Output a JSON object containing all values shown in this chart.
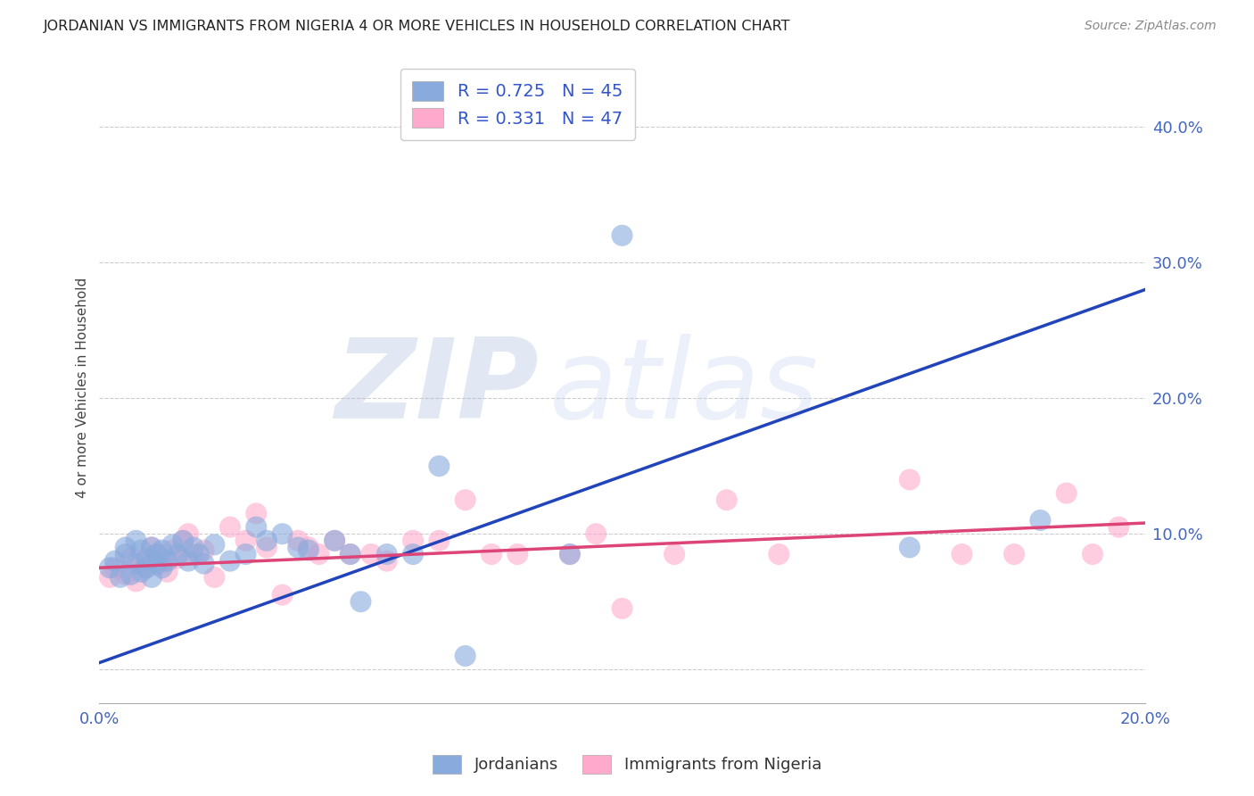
{
  "title": "JORDANIAN VS IMMIGRANTS FROM NIGERIA 4 OR MORE VEHICLES IN HOUSEHOLD CORRELATION CHART",
  "source": "Source: ZipAtlas.com",
  "ylabel_label": "4 or more Vehicles in Household",
  "x_min": 0.0,
  "x_max": 0.2,
  "y_min": -0.025,
  "y_max": 0.44,
  "x_ticks": [
    0.0,
    0.04,
    0.08,
    0.12,
    0.16,
    0.2
  ],
  "x_tick_labels": [
    "0.0%",
    "",
    "",
    "",
    "",
    "20.0%"
  ],
  "y_ticks": [
    0.0,
    0.1,
    0.2,
    0.3,
    0.4
  ],
  "y_tick_labels": [
    "",
    "10.0%",
    "20.0%",
    "30.0%",
    "40.0%"
  ],
  "blue_color": "#88AADD",
  "blue_line_color": "#2244BB",
  "pink_color": "#FFAACC",
  "pink_line_color": "#DD4477",
  "legend_blue_label": "R = 0.725   N = 45",
  "legend_pink_label": "R = 0.331   N = 47",
  "legend_label_jordanians": "Jordanians",
  "legend_label_nigeria": "Immigrants from Nigeria",
  "watermark_zip": "ZIP",
  "watermark_atlas": "atlas",
  "blue_R": 0.725,
  "blue_N": 45,
  "pink_R": 0.331,
  "pink_N": 47,
  "blue_line_x0": 0.0,
  "blue_line_y0": 0.005,
  "blue_line_x1": 0.2,
  "blue_line_y1": 0.28,
  "pink_line_x0": 0.0,
  "pink_line_y0": 0.075,
  "pink_line_x1": 0.2,
  "pink_line_y1": 0.108,
  "blue_scatter_x": [
    0.002,
    0.003,
    0.004,
    0.005,
    0.005,
    0.006,
    0.007,
    0.007,
    0.008,
    0.008,
    0.009,
    0.009,
    0.01,
    0.01,
    0.011,
    0.011,
    0.012,
    0.012,
    0.013,
    0.014,
    0.015,
    0.016,
    0.017,
    0.018,
    0.019,
    0.02,
    0.022,
    0.025,
    0.028,
    0.03,
    0.032,
    0.035,
    0.038,
    0.04,
    0.045,
    0.048,
    0.05,
    0.055,
    0.06,
    0.065,
    0.07,
    0.09,
    0.1,
    0.155,
    0.18
  ],
  "blue_scatter_y": [
    0.075,
    0.08,
    0.068,
    0.085,
    0.09,
    0.07,
    0.078,
    0.095,
    0.072,
    0.088,
    0.075,
    0.082,
    0.068,
    0.09,
    0.078,
    0.085,
    0.075,
    0.088,
    0.08,
    0.092,
    0.085,
    0.095,
    0.08,
    0.09,
    0.085,
    0.078,
    0.092,
    0.08,
    0.085,
    0.105,
    0.095,
    0.1,
    0.09,
    0.088,
    0.095,
    0.085,
    0.05,
    0.085,
    0.085,
    0.15,
    0.01,
    0.085,
    0.32,
    0.09,
    0.11
  ],
  "pink_scatter_x": [
    0.002,
    0.003,
    0.005,
    0.006,
    0.007,
    0.008,
    0.009,
    0.01,
    0.011,
    0.012,
    0.013,
    0.014,
    0.015,
    0.016,
    0.017,
    0.018,
    0.02,
    0.022,
    0.025,
    0.028,
    0.03,
    0.032,
    0.035,
    0.038,
    0.04,
    0.042,
    0.045,
    0.048,
    0.052,
    0.055,
    0.06,
    0.065,
    0.07,
    0.075,
    0.08,
    0.09,
    0.095,
    0.1,
    0.11,
    0.12,
    0.13,
    0.155,
    0.165,
    0.175,
    0.185,
    0.19,
    0.195
  ],
  "pink_scatter_y": [
    0.068,
    0.075,
    0.07,
    0.082,
    0.065,
    0.08,
    0.075,
    0.09,
    0.085,
    0.078,
    0.072,
    0.088,
    0.082,
    0.095,
    0.1,
    0.085,
    0.088,
    0.068,
    0.105,
    0.095,
    0.115,
    0.09,
    0.055,
    0.095,
    0.09,
    0.085,
    0.095,
    0.085,
    0.085,
    0.08,
    0.095,
    0.095,
    0.125,
    0.085,
    0.085,
    0.085,
    0.1,
    0.045,
    0.085,
    0.125,
    0.085,
    0.14,
    0.085,
    0.085,
    0.13,
    0.085,
    0.105
  ]
}
